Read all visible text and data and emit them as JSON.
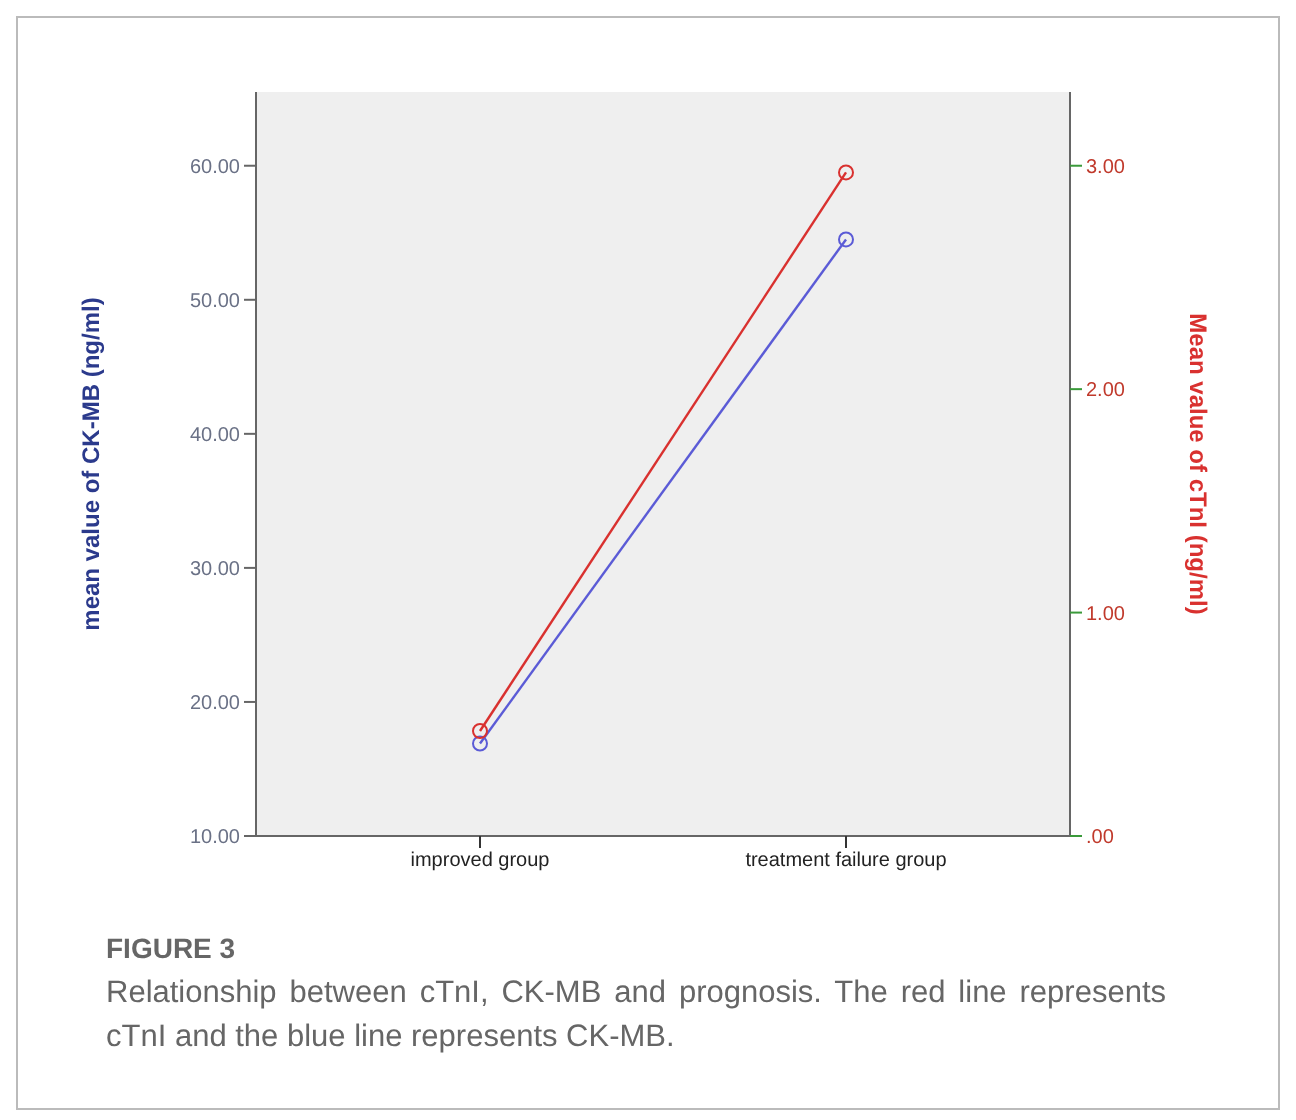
{
  "chart_data": {
    "type": "line",
    "categories": [
      "improved group",
      "treatment failure group"
    ],
    "ylabel": "mean value of CK-MB (ng/ml)",
    "y2label": "Mean value of cTnI (ng/ml)",
    "ylim": [
      10,
      65.5
    ],
    "yticks": [
      {
        "value": 10,
        "label": "10.00"
      },
      {
        "value": 20,
        "label": "20.00"
      },
      {
        "value": 30,
        "label": "30.00"
      },
      {
        "value": 40,
        "label": "40.00"
      },
      {
        "value": 50,
        "label": "50.00"
      },
      {
        "value": 60,
        "label": "60.00"
      }
    ],
    "y2lim": [
      0,
      3.33
    ],
    "y2ticks": [
      {
        "value": 0,
        "label": ".00"
      },
      {
        "value": 1,
        "label": "1.00"
      },
      {
        "value": 2,
        "label": "2.00"
      },
      {
        "value": 3,
        "label": "3.00"
      }
    ],
    "marker": "circle",
    "series": [
      {
        "color": "#5b5bd6",
        "values": [
          16.9,
          54.5
        ]
      },
      {
        "color": "#d9312f",
        "values": [
          0.47,
          2.97
        ],
        "axis": "y2"
      }
    ],
    "annotations": [
      "FIGURE 3",
      "Relationship between cTnI, CK-MB and prognosis. The red line represents cTnI and the blue line represents CK-MB."
    ]
  }
}
